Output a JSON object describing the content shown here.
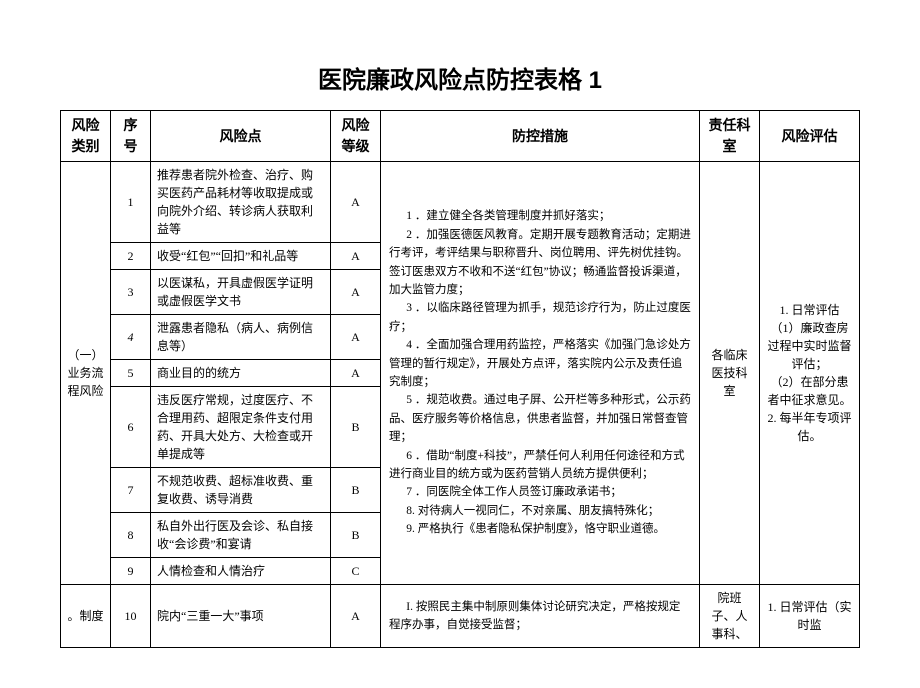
{
  "title": "医院廉政风险点防控表格 1",
  "headers": {
    "category": "风险类别",
    "num": "序号",
    "risk": "风险点",
    "level": "风险等级",
    "measures": "防控措施",
    "dept": "责任科室",
    "eval": "风险评估"
  },
  "cat1": "（一）业务流程风险",
  "cat2": "。制度",
  "rows": {
    "r1": {
      "num": "1",
      "risk": "推荐患者院外检查、治疗、购买医药产品耗材等收取提成或向院外介绍、转诊病人获取利益等",
      "level": "A"
    },
    "r2": {
      "num": "2",
      "risk": "收受“红包”“回扣”和礼品等",
      "level": "A"
    },
    "r3": {
      "num": "3",
      "risk": "以医谋私，开具虚假医学证明或虚假医学文书",
      "level": "A"
    },
    "r4": {
      "num": "4",
      "risk": "泄露患者隐私（病人、病例信息等）",
      "level": "A"
    },
    "r5": {
      "num": "5",
      "risk": "商业目的的统方",
      "level": "A"
    },
    "r6": {
      "num": "6",
      "risk": "违反医疗常规，过度医疗、不合理用药、超限定条件支付用药、开具大处方、大检查或开单提成等",
      "level": "B"
    },
    "r7": {
      "num": "7",
      "risk": "不规范收费、超标准收费、重复收费、诱导消费",
      "level": "B"
    },
    "r8": {
      "num": "8",
      "risk": "私自外出行医及会诊、私自接收“会诊费”和宴请",
      "level": "B"
    },
    "r9": {
      "num": "9",
      "risk": "人情检查和人情治疗",
      "level": "C"
    },
    "r10": {
      "num": "10",
      "risk": "院内“三重一大”事项",
      "level": "A"
    }
  },
  "measures1": {
    "m1": "1 ．建立健全各类管理制度并抓好落实；",
    "m2": "2 ．加强医德医风教育。定期开展专题教育活动；定期进行考评，考评结果与职称晋升、岗位聘用、评先树优挂钩。签订医患双方不收和不送“红包”协议；畅通监督投诉渠道，加大监管力度；",
    "m3": "3 ．以临床路径管理为抓手，规范诊疗行为，防止过度医疗；",
    "m4": "4 ．全面加强合理用药监控，严格落实《加强门急诊处方管理的暂行规定》，开展处方点评，落实院内公示及责任追究制度；",
    "m5": "5 ．规范收费。通过电子屏、公开栏等多种形式，公示药品、医疗服务等价格信息，供患者监督，并加强日常督查管理；",
    "m6": "6 ．借助“制度+科技”，严禁任何人利用任何途径和方式进行商业目的统方或为医药营销人员统方提供便利；",
    "m7": "7 ．同医院全体工作人员签订廉政承诺书；",
    "m8": "8. 对待病人一视同仁，不对亲属、朋友搞特殊化；",
    "m9": "9. 严格执行《患者隐私保护制度》，恪守职业道德。"
  },
  "measures2": "I. 按照民主集中制原则集体讨论研究决定，严格按规定程序办事，自觉接受监督；",
  "dept1": "各临床医技科室",
  "dept2": "院班子、人事科、",
  "eval1_l1": "1. 日常评估",
  "eval1_l2": "（1）廉政查房过程中实时监督评估；",
  "eval1_l3": "（2）在部分患者中征求意见。",
  "eval1_l4": "2. 每半年专项评估。",
  "eval2": "1. 日常评估（实时监"
}
